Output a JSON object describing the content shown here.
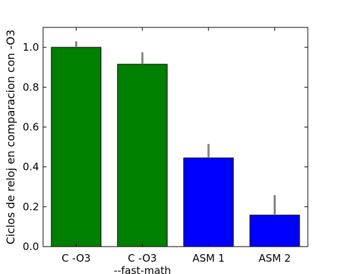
{
  "chart_data": {
    "type": "bar",
    "title": "",
    "xlabel": "",
    "ylabel": "Ciclos de reloj en comparacion con -O3",
    "ylim": [
      0,
      1.1
    ],
    "yticks": [
      "0.0",
      "0.2",
      "0.4",
      "0.6",
      "0.8",
      "1.0"
    ],
    "categories": [
      [
        "C -O3"
      ],
      [
        "C -O3",
        "--fast-math"
      ],
      [
        "ASM 1"
      ],
      [
        "ASM 2"
      ]
    ],
    "values": [
      1.0,
      0.915,
      0.445,
      0.158
    ],
    "errors": [
      0.03,
      0.06,
      0.07,
      0.1
    ],
    "colors": [
      "#008000",
      "#008000",
      "#0000ff",
      "#0000ff"
    ],
    "error_color": "#808080",
    "grid": false,
    "legend": "none"
  }
}
